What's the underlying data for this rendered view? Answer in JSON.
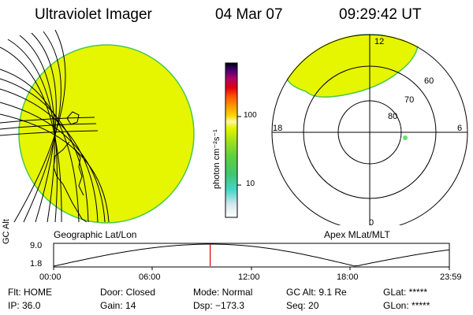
{
  "header": {
    "title": "Ultraviolet Imager",
    "date": "04 Mar 07",
    "time": "09:29:42 UT"
  },
  "colors": {
    "aurora_fill": "#e6f500",
    "aurora_edge": "#49c84f",
    "background": "#ffffff",
    "marker": "#d40000",
    "spot": "#66e070"
  },
  "colorbar": {
    "unit_label": "photon cm⁻²s⁻¹",
    "ticks": [
      "100",
      "10"
    ],
    "scale": "log"
  },
  "geo_panel": {
    "label": "Geographic Lat/Lon"
  },
  "polar_panel": {
    "label": "Apex MLat/MLT",
    "mlt_labels": [
      "12",
      "18",
      "6",
      "0"
    ],
    "lat_labels": [
      "60",
      "70",
      "80"
    ]
  },
  "altitude_plot": {
    "ylabel": "GC Alt",
    "y_ticks": [
      "9.0",
      "1.8"
    ],
    "x_ticks": [
      "00:00",
      "06:00",
      "12:00",
      "18:00",
      "23:59"
    ],
    "current_time_hours": 9.495
  },
  "status": {
    "flt": "Flt: HOME",
    "ip": "IP: 36.0",
    "door": "Door: Closed",
    "gain": "Gain: 14",
    "mode": "Mode: Normal",
    "dsp": "Dsp: −173.3",
    "gc_alt": "GC Alt: 9.1 Re",
    "seq": "Seq: 20",
    "glat": "GLat: *****",
    "glon": "GLon: *****"
  }
}
